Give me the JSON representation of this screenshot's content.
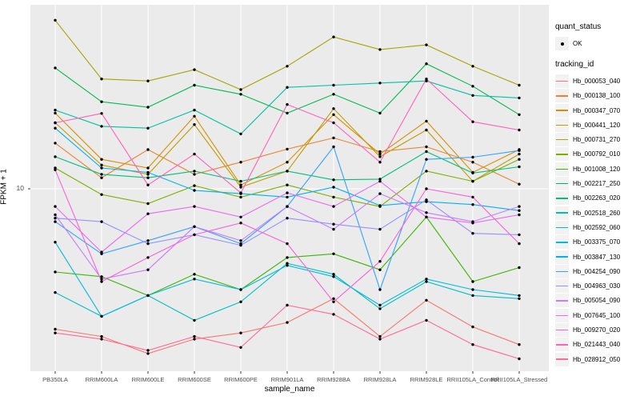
{
  "figure": {
    "background": "#ffffff",
    "panel_background": "#ebebeb",
    "gridline_color": "#ffffff",
    "tick_color": "#333333",
    "tick_label_color": "#4d4d4d",
    "point_color": "#000000"
  },
  "legend": {
    "quant_status_title": "quant_status",
    "quant_status_items": [
      {
        "label": "OK",
        "symbol": "point"
      }
    ],
    "tracking_id_title": "tracking_id"
  },
  "chart_data": {
    "type": "line",
    "title": "",
    "xlabel": "sample_name",
    "ylabel": "FPKM + 1",
    "y_scale": "log10",
    "y_tick_label": "10",
    "y_ticks": [
      10
    ],
    "ylim_approx": [
      1,
      100
    ],
    "grid": "major-only",
    "legend_position": "right",
    "marker": "black point on every value",
    "x_categories": [
      "PB350LA",
      "RRIM600LA",
      "RRIM600LE",
      "RRIM600SE",
      "RRIM600PE",
      "RRIM901LA",
      "RRIM928BA",
      "RRIM928LA",
      "RRIM928LE",
      "RRII105LA_Control",
      "RRII105LA_Stressed"
    ],
    "series": [
      {
        "name": "Hb_000053_040",
        "color": "#F8766D",
        "values": [
          1.7,
          1.55,
          1.25,
          1.5,
          1.62,
          1.85,
          2.5,
          1.55,
          2.45,
          1.75,
          1.4
        ]
      },
      {
        "name": "Hb_000138_100",
        "color": "#EA8331",
        "values": [
          17.8,
          11.5,
          16.4,
          12,
          14,
          16.5,
          19,
          16,
          17,
          14,
          10.6
        ]
      },
      {
        "name": "Hb_000347_070",
        "color": "#D89000",
        "values": [
          26,
          14.5,
          13,
          25,
          10.5,
          14,
          25.5,
          15.5,
          23.5,
          12.3,
          16.4
        ]
      },
      {
        "name": "Hb_000441_120",
        "color": "#C09B00",
        "values": [
          23,
          13.5,
          12,
          22.5,
          10.2,
          12.5,
          27.5,
          15,
          21,
          11,
          15.5
        ]
      },
      {
        "name": "Hb_000731_270",
        "color": "#A3A500",
        "values": [
          84,
          40,
          39,
          45,
          35,
          47,
          68,
          58,
          61.5,
          47,
          37
        ]
      },
      {
        "name": "Hb_000792_010",
        "color": "#7CAE00",
        "values": [
          13,
          9.3,
          8.3,
          10.4,
          9,
          10.5,
          9,
          8,
          12.5,
          11,
          14.5
        ]
      },
      {
        "name": "Hb_001008_120",
        "color": "#39B600",
        "values": [
          3.5,
          3.3,
          2.6,
          3.4,
          2.8,
          4.2,
          4.4,
          3.6,
          7,
          3.1,
          3.7
        ]
      },
      {
        "name": "Hb_002217_250",
        "color": "#00BB4E",
        "values": [
          46,
          30,
          28,
          37,
          33,
          26,
          33,
          26,
          48.5,
          36.5,
          25.5
        ]
      },
      {
        "name": "Hb_002263_020",
        "color": "#00BF7D",
        "values": [
          15,
          12,
          11.5,
          12.5,
          11,
          12.5,
          11.2,
          11.3,
          16,
          12.2,
          13.2
        ]
      },
      {
        "name": "Hb_002518_260",
        "color": "#00C1A3",
        "values": [
          27,
          22,
          21.5,
          27,
          20,
          36,
          37,
          38,
          39,
          32.5,
          31.5
        ]
      },
      {
        "name": "Hb_002592_060",
        "color": "#00BFC4",
        "values": [
          2.7,
          2,
          2.6,
          1.9,
          2.4,
          3.9,
          3.4,
          2.2,
          3.1,
          2.6,
          2.5
        ]
      },
      {
        "name": "Hb_003375_070",
        "color": "#00BAE0",
        "values": [
          5.1,
          2,
          2.6,
          3.2,
          2.8,
          3.8,
          3.3,
          2.3,
          3.2,
          2.8,
          2.6
        ]
      },
      {
        "name": "Hb_003847_130",
        "color": "#00B0F6",
        "values": [
          21.5,
          13,
          12.3,
          9.8,
          9.4,
          9,
          10.2,
          8.1,
          8.5,
          8.2,
          7.6
        ]
      },
      {
        "name": "Hb_004254_090",
        "color": "#35A2FF",
        "values": [
          6.6,
          4.4,
          5.2,
          6.2,
          5,
          8,
          17,
          2.8,
          14.5,
          14.9,
          16.2
        ]
      },
      {
        "name": "Hb_004963_030",
        "color": "#9590FF",
        "values": [
          6.9,
          6.6,
          5,
          5.6,
          4.9,
          6.9,
          6.4,
          6,
          8.7,
          5.7,
          5.6
        ]
      },
      {
        "name": "Hb_005054_090",
        "color": "#C77CFF",
        "values": [
          7.2,
          3.2,
          3.6,
          6.2,
          5.2,
          8,
          6,
          9.4,
          7.4,
          6.6,
          8
        ]
      },
      {
        "name": "Hb_007645_100",
        "color": "#E76BF3",
        "values": [
          8,
          4.5,
          7.3,
          8,
          7,
          9.5,
          8,
          11,
          7,
          6.5,
          7.2
        ]
      },
      {
        "name": "Hb_009270_020",
        "color": "#FA62DB",
        "values": [
          12.7,
          3.1,
          4.2,
          5.6,
          6.5,
          5,
          2.4,
          4,
          10,
          9,
          5
        ]
      },
      {
        "name": "Hb_021443_040",
        "color": "#FF62BC",
        "values": [
          23,
          25.9,
          10.5,
          15.5,
          9.5,
          29,
          23,
          14,
          40,
          23.3,
          21
        ]
      },
      {
        "name": "Hb_028912_050",
        "color": "#FF6A98",
        "values": [
          1.62,
          1.5,
          1.3,
          1.55,
          1.35,
          2.3,
          2.05,
          1.5,
          1.9,
          1.4,
          1.17
        ]
      }
    ]
  }
}
